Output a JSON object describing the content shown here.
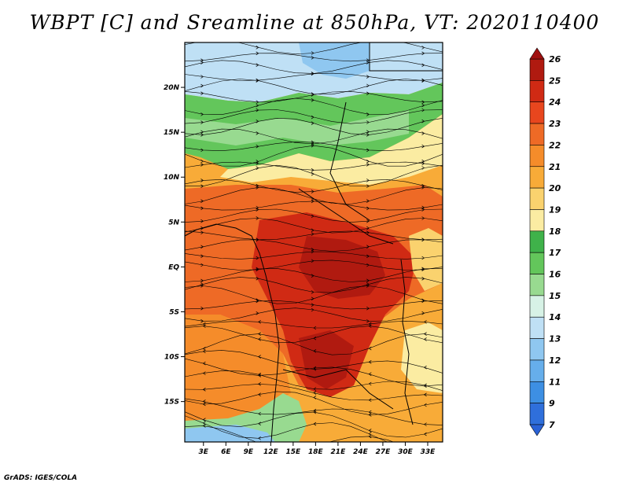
{
  "title": "WBPT [C] and Sreamline at 850hPa, VT: 2020110400",
  "credit": "GrADS: IGES/COLA",
  "map": {
    "lat_labels": [
      "20N",
      "15N",
      "10N",
      "5N",
      "EQ",
      "5S",
      "10S",
      "15S"
    ],
    "lat_values": [
      20,
      15,
      10,
      5,
      0,
      -5,
      -10,
      -15
    ],
    "lon_labels": [
      "3E",
      "6E",
      "9E",
      "12E",
      "15E",
      "18E",
      "21E",
      "24E",
      "27E",
      "30E",
      "33E"
    ],
    "lon_values": [
      3,
      6,
      9,
      12,
      15,
      18,
      21,
      24,
      27,
      30,
      33
    ],
    "lon_range": [
      0.5,
      35
    ],
    "lat_range": [
      -19.5,
      25
    ]
  },
  "colorbar": {
    "labels": [
      "26",
      "25",
      "24",
      "23",
      "22",
      "21",
      "20",
      "19",
      "18",
      "17",
      "16",
      "15",
      "14",
      "13",
      "12",
      "11",
      "9",
      "7"
    ],
    "colors": [
      "#b01a10",
      "#d02a14",
      "#e8461e",
      "#ee6a26",
      "#f58c2a",
      "#f8ab38",
      "#fad26e",
      "#fbeca2",
      "#3fb24a",
      "#63c65b",
      "#98da90",
      "#d7f2e6",
      "#bfe0f5",
      "#8fc7f0",
      "#66aeeb",
      "#3d8fe3",
      "#2f6fdb"
    ]
  }
}
